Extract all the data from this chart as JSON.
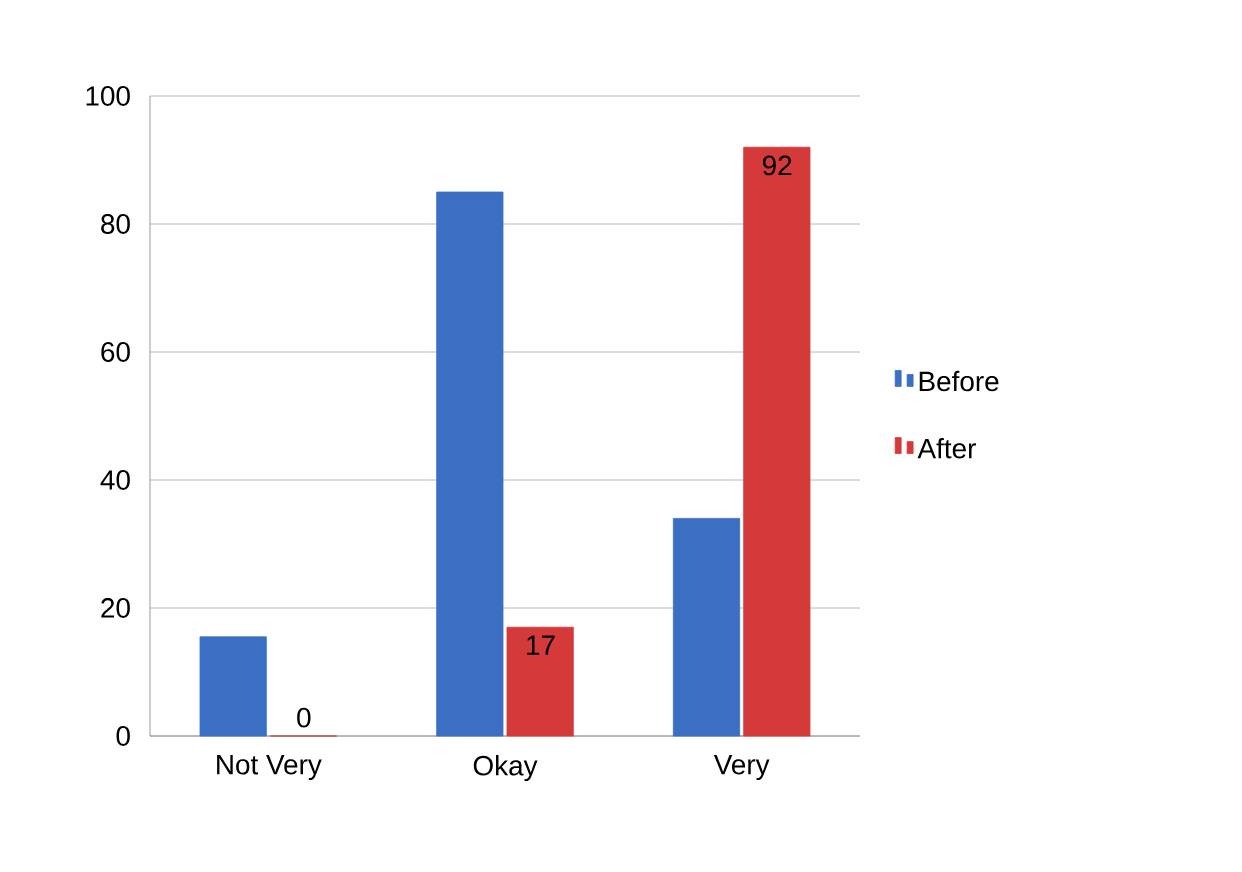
{
  "chart_data": {
    "type": "bar",
    "categories": [
      "Not Very",
      "Okay",
      "Very"
    ],
    "series": [
      {
        "name": "Before",
        "color": "#3a6fc4",
        "values": [
          15.5,
          85,
          34
        ]
      },
      {
        "name": "After",
        "color": "#d43a3a",
        "values": [
          0,
          17,
          92
        ],
        "value_labels": [
          "0",
          "17",
          "92"
        ]
      }
    ],
    "ylim": [
      0,
      100
    ],
    "yticks": [
      0,
      20,
      40,
      60,
      80,
      100
    ],
    "grid": "y",
    "legend": "right"
  }
}
